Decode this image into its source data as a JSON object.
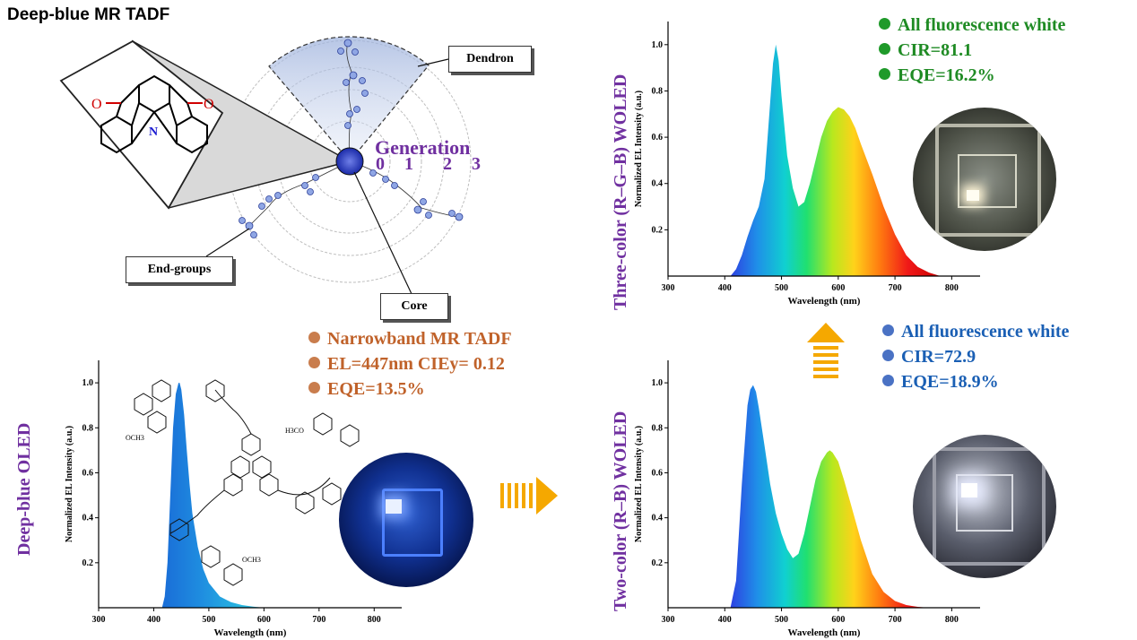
{
  "title": "Deep-blue MR TADF",
  "dendrimer": {
    "callouts": {
      "dendron": "Dendron",
      "end_groups": "End-groups",
      "core": "Core"
    },
    "generation_title": "Generation",
    "generation_numbers": [
      "0",
      "1",
      "2",
      "3"
    ],
    "core_atoms": {
      "oxygen": "O",
      "nitrogen": "N"
    }
  },
  "panels": {
    "deep_blue": {
      "side_label": "Deep-blue OLED",
      "bullets": [
        "Narrowband MR TADF",
        "EL=447nm  CIEy= 0.12",
        "EQE=13.5%"
      ],
      "bullet_color": "#c0622a",
      "structure_labels": [
        "OCH3",
        "H3CO",
        "OCH3"
      ]
    },
    "two_color": {
      "side_label": "Two-color (R–B) WOLED",
      "bullets": [
        "All fluorescence white",
        "CIR=72.9",
        "EQE=18.9%"
      ],
      "bullet_color": "#1a5fb4",
      "dot_color": "#4a72c4"
    },
    "three_color": {
      "side_label": "Three-color (R–G–B) WOLED",
      "bullets": [
        "All fluorescence white",
        "CIR=81.1",
        "EQE=16.2%"
      ],
      "bullet_color": "#1f8b24",
      "dot_color": "#1f9a2a"
    }
  },
  "arrow_color": "#f5a800",
  "chart_data": [
    {
      "id": "deep_blue",
      "type": "area",
      "title": "",
      "xlabel": "Wavelength (nm)",
      "ylabel": "Normalized EL Intensity (a.u.)",
      "xlim": [
        300,
        850
      ],
      "ylim": [
        0,
        1.1
      ],
      "xticks": [
        "300",
        "400",
        "500",
        "600",
        "700",
        "800"
      ],
      "yticks": [
        "0.2",
        "0.4",
        "0.6",
        "0.8",
        "1.0"
      ],
      "x": [
        415,
        420,
        425,
        430,
        435,
        440,
        445,
        447,
        450,
        455,
        460,
        465,
        470,
        480,
        490,
        500,
        520,
        540,
        560,
        580,
        600
      ],
      "y": [
        0.0,
        0.05,
        0.2,
        0.5,
        0.8,
        0.95,
        1.0,
        1.0,
        0.97,
        0.86,
        0.7,
        0.55,
        0.42,
        0.27,
        0.17,
        0.11,
        0.05,
        0.025,
        0.012,
        0.005,
        0.0
      ],
      "fill": "#1f7fd6"
    },
    {
      "id": "three_color",
      "type": "area",
      "title": "",
      "xlabel": "Wavelength (nm)",
      "ylabel": "Normalized EL Intensity (a.u.)",
      "xlim": [
        300,
        850
      ],
      "ylim": [
        0,
        1.1
      ],
      "xticks": [
        "300",
        "400",
        "500",
        "600",
        "700",
        "800"
      ],
      "yticks": [
        "0.2",
        "0.4",
        "0.6",
        "0.8",
        "1.0"
      ],
      "x": [
        410,
        420,
        430,
        440,
        450,
        460,
        470,
        480,
        485,
        490,
        495,
        500,
        510,
        520,
        530,
        540,
        550,
        560,
        570,
        580,
        590,
        600,
        610,
        620,
        630,
        640,
        660,
        680,
        700,
        720,
        740,
        760,
        780
      ],
      "y": [
        0.0,
        0.03,
        0.09,
        0.17,
        0.24,
        0.3,
        0.42,
        0.75,
        0.92,
        1.0,
        0.93,
        0.78,
        0.52,
        0.38,
        0.3,
        0.32,
        0.4,
        0.5,
        0.6,
        0.67,
        0.71,
        0.73,
        0.72,
        0.69,
        0.64,
        0.57,
        0.44,
        0.3,
        0.18,
        0.09,
        0.04,
        0.015,
        0.0
      ],
      "fill": "spectrum"
    },
    {
      "id": "two_color",
      "type": "area",
      "title": "",
      "xlabel": "Wavelength (nm)",
      "ylabel": "Normalized EL Intensity (a.u.)",
      "xlim": [
        300,
        850
      ],
      "ylim": [
        0,
        1.1
      ],
      "xticks": [
        "300",
        "400",
        "500",
        "600",
        "700",
        "800"
      ],
      "yticks": [
        "0.2",
        "0.4",
        "0.6",
        "0.8",
        "1.0"
      ],
      "x": [
        410,
        420,
        430,
        440,
        445,
        450,
        455,
        460,
        470,
        480,
        490,
        500,
        510,
        520,
        530,
        540,
        550,
        560,
        570,
        580,
        585,
        590,
        600,
        610,
        620,
        640,
        660,
        680,
        700,
        720,
        740,
        760
      ],
      "y": [
        0.0,
        0.12,
        0.55,
        0.9,
        0.97,
        0.99,
        0.96,
        0.89,
        0.72,
        0.55,
        0.42,
        0.33,
        0.26,
        0.22,
        0.24,
        0.33,
        0.45,
        0.57,
        0.65,
        0.69,
        0.7,
        0.69,
        0.65,
        0.57,
        0.48,
        0.3,
        0.15,
        0.07,
        0.03,
        0.012,
        0.004,
        0.0
      ],
      "fill": "spectrum"
    }
  ]
}
